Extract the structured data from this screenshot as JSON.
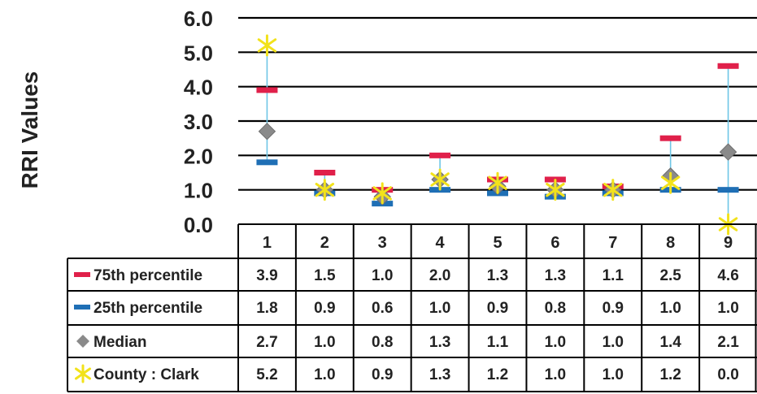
{
  "chart_data": {
    "type": "table",
    "ylabel": "RRI Values",
    "ylim": [
      0,
      6
    ],
    "yticks": [
      "0.0",
      "1.0",
      "2.0",
      "3.0",
      "4.0",
      "5.0",
      "6.0"
    ],
    "grid": true,
    "legend_placement": "table-left",
    "categories": [
      "1",
      "2",
      "3",
      "4",
      "5",
      "6",
      "7",
      "8",
      "9"
    ],
    "series": [
      {
        "name": "75th percentile",
        "marker": "dash",
        "color": "#e0204a",
        "values": [
          3.9,
          1.5,
          1.0,
          2.0,
          1.3,
          1.3,
          1.1,
          2.5,
          4.6
        ],
        "labels": [
          "3.9",
          "1.5",
          "1.0",
          "2.0",
          "1.3",
          "1.3",
          "1.1",
          "2.5",
          "4.6"
        ]
      },
      {
        "name": "25th percentile",
        "marker": "dash",
        "color": "#1f6fb5",
        "values": [
          1.8,
          0.9,
          0.6,
          1.0,
          0.9,
          0.8,
          0.9,
          1.0,
          1.0
        ],
        "labels": [
          "1.8",
          "0.9",
          "0.6",
          "1.0",
          "0.9",
          "0.8",
          "0.9",
          "1.0",
          "1.0"
        ]
      },
      {
        "name": "Median",
        "marker": "diamond",
        "color": "#8a8a8a",
        "values": [
          2.7,
          1.0,
          0.8,
          1.3,
          1.1,
          1.0,
          1.0,
          1.4,
          2.1
        ],
        "labels": [
          "2.7",
          "1.0",
          "0.8",
          "1.3",
          "1.1",
          "1.0",
          "1.0",
          "1.4",
          "2.1"
        ]
      },
      {
        "name": "County : Clark",
        "marker": "star",
        "color": "#f2e21b",
        "values": [
          5.2,
          1.0,
          0.9,
          1.3,
          1.2,
          1.0,
          1.0,
          1.2,
          0.0
        ],
        "labels": [
          "5.2",
          "1.0",
          "0.9",
          "1.3",
          "1.2",
          "1.0",
          "1.0",
          "1.2",
          "0.0"
        ]
      }
    ],
    "range_line_color": "#6ec6e6"
  }
}
